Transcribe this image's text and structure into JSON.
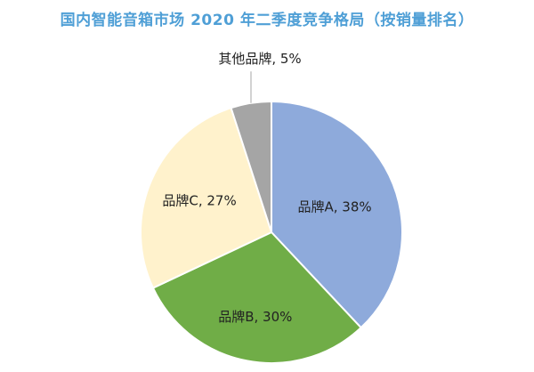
{
  "chart_data": {
    "type": "pie",
    "title": "国内智能音箱市场 2020 年二季度竞争格局（按销量排名）",
    "categories": [
      "品牌A",
      "品牌B",
      "品牌C",
      "其他品牌"
    ],
    "values": [
      38,
      30,
      27,
      5
    ],
    "unit": "%",
    "data_labels": [
      "品牌A, 38%",
      "品牌B, 30%",
      "品牌C, 27%",
      "其他品牌, 5%"
    ],
    "colors": [
      "#8eaadb",
      "#70ad47",
      "#fff2cc",
      "#a5a5a5"
    ],
    "start": "12 o'clock",
    "direction": "clockwise",
    "legend": "none"
  }
}
